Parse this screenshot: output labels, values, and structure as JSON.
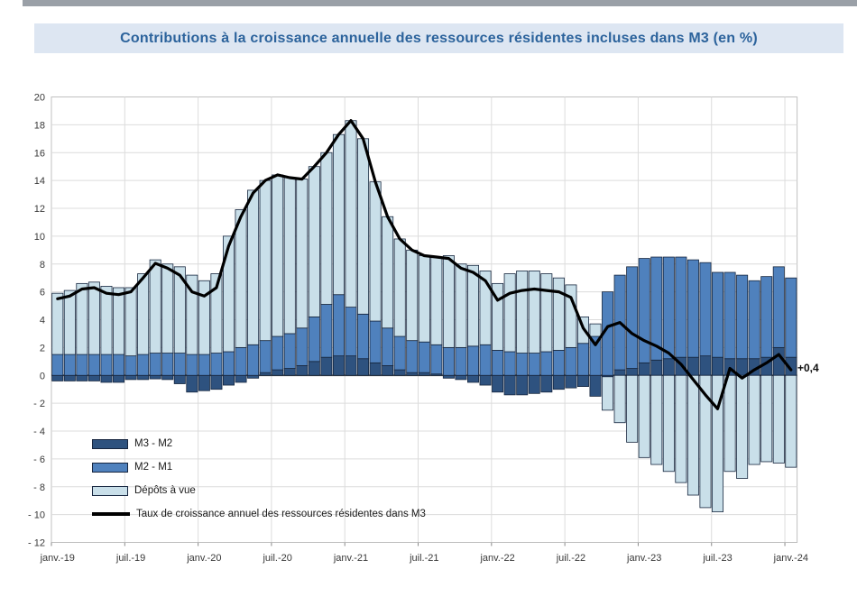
{
  "title": {
    "text": "Contributions à la croissance annuelle des ressources résidentes incluses dans M3 (en %)"
  },
  "annotation_label": "+0,4",
  "chart_data": {
    "type": "bar",
    "variant": "stacked-bars-with-total-line",
    "unit": "%",
    "grid": true,
    "legend_position": "bottom-left-inside",
    "ylim": [
      -12,
      20
    ],
    "ytick_step": 2,
    "ytick_labels": [
      "20",
      "18",
      "16",
      "14",
      "12",
      "10",
      "8",
      "6",
      "4",
      "2",
      "0",
      "- 2",
      "- 4",
      "- 6",
      "- 8",
      "- 10",
      "- 12"
    ],
    "x": [
      "2019-01",
      "2019-02",
      "2019-03",
      "2019-04",
      "2019-05",
      "2019-06",
      "2019-07",
      "2019-08",
      "2019-09",
      "2019-10",
      "2019-11",
      "2019-12",
      "2020-01",
      "2020-02",
      "2020-03",
      "2020-04",
      "2020-05",
      "2020-06",
      "2020-07",
      "2020-08",
      "2020-09",
      "2020-10",
      "2020-11",
      "2020-12",
      "2021-01",
      "2021-02",
      "2021-03",
      "2021-04",
      "2021-05",
      "2021-06",
      "2021-07",
      "2021-08",
      "2021-09",
      "2021-10",
      "2021-11",
      "2021-12",
      "2022-01",
      "2022-02",
      "2022-03",
      "2022-04",
      "2022-05",
      "2022-06",
      "2022-07",
      "2022-08",
      "2022-09",
      "2022-10",
      "2022-11",
      "2022-12",
      "2023-01",
      "2023-02",
      "2023-03",
      "2023-04",
      "2023-05",
      "2023-06",
      "2023-07",
      "2023-08",
      "2023-09",
      "2023-10",
      "2023-11",
      "2023-12",
      "2024-01"
    ],
    "x_tick_labels": [
      "janv.-19",
      "juil.-19",
      "janv.-20",
      "juil.-20",
      "janv.-21",
      "juil.-21",
      "janv.-22",
      "juil.-22",
      "janv.-23",
      "juil.-23",
      "janv.-24"
    ],
    "x_tick_positions": [
      0,
      6,
      12,
      18,
      24,
      30,
      36,
      42,
      48,
      54,
      60
    ],
    "series": [
      {
        "name": "M3 - M2",
        "role": "bar",
        "color": "#2e527f",
        "values": [
          -0.4,
          -0.4,
          -0.4,
          -0.4,
          -0.5,
          -0.5,
          -0.3,
          -0.3,
          -0.25,
          -0.3,
          -0.6,
          -1.2,
          -1.1,
          -1.0,
          -0.7,
          -0.5,
          -0.2,
          0.2,
          0.4,
          0.5,
          0.7,
          1.0,
          1.3,
          1.4,
          1.4,
          1.2,
          0.9,
          0.7,
          0.4,
          0.2,
          0.2,
          0.1,
          -0.2,
          -0.3,
          -0.5,
          -0.7,
          -1.2,
          -1.4,
          -1.4,
          -1.3,
          -1.2,
          -1.0,
          -0.9,
          -0.8,
          -1.5,
          -0.1,
          0.4,
          0.5,
          0.9,
          1.1,
          1.2,
          1.3,
          1.3,
          1.4,
          1.3,
          1.2,
          1.2,
          1.2,
          1.3,
          2.0,
          1.3
        ]
      },
      {
        "name": "M2 - M1",
        "role": "bar",
        "color": "#4f81bd",
        "values": [
          1.5,
          1.5,
          1.5,
          1.5,
          1.5,
          1.5,
          1.4,
          1.5,
          1.6,
          1.6,
          1.6,
          1.5,
          1.5,
          1.6,
          1.7,
          2.0,
          2.2,
          2.3,
          2.4,
          2.5,
          2.7,
          3.2,
          3.8,
          4.4,
          3.5,
          3.2,
          3.0,
          2.7,
          2.4,
          2.3,
          2.2,
          2.1,
          2.0,
          2.0,
          2.1,
          2.2,
          1.8,
          1.7,
          1.6,
          1.6,
          1.7,
          1.8,
          2.0,
          2.3,
          2.8,
          6.0,
          6.8,
          7.3,
          7.5,
          7.4,
          7.3,
          7.2,
          7.0,
          6.7,
          6.1,
          6.2,
          6.0,
          5.6,
          5.8,
          5.8,
          5.7
        ]
      },
      {
        "name": "Dépôts à vue",
        "role": "bar",
        "color": "#c9dfe9",
        "values": [
          4.4,
          4.6,
          5.1,
          5.2,
          4.9,
          4.8,
          4.9,
          5.8,
          6.7,
          6.4,
          6.2,
          5.7,
          5.3,
          5.7,
          8.3,
          9.9,
          11.1,
          11.5,
          11.6,
          11.2,
          10.7,
          10.8,
          10.9,
          11.5,
          13.4,
          12.6,
          10.0,
          8.0,
          7.0,
          6.5,
          6.2,
          6.3,
          6.6,
          6.0,
          5.8,
          5.3,
          4.8,
          5.6,
          5.9,
          5.9,
          5.6,
          5.2,
          4.5,
          1.9,
          0.9,
          -2.4,
          -3.4,
          -4.8,
          -5.9,
          -6.4,
          -6.9,
          -7.7,
          -8.6,
          -9.5,
          -9.8,
          -6.9,
          -7.4,
          -6.4,
          -6.2,
          -6.3,
          -6.6
        ]
      },
      {
        "name": "Taux de croissance annuel des ressources résidentes dans M3",
        "role": "line",
        "color": "#000000",
        "values": [
          5.5,
          5.7,
          6.2,
          6.3,
          5.9,
          5.8,
          6.0,
          7.0,
          8.05,
          7.7,
          7.2,
          6.0,
          5.7,
          6.3,
          9.3,
          11.4,
          13.1,
          14.0,
          14.4,
          14.2,
          14.1,
          15.0,
          16.0,
          17.3,
          18.3,
          17.0,
          13.9,
          11.4,
          9.8,
          9.0,
          8.6,
          8.5,
          8.4,
          7.7,
          7.4,
          6.8,
          5.4,
          5.9,
          6.1,
          6.2,
          6.1,
          6.0,
          5.6,
          3.4,
          2.2,
          3.5,
          3.8,
          3.0,
          2.5,
          2.1,
          1.6,
          0.8,
          -0.3,
          -1.4,
          -2.4,
          0.5,
          -0.2,
          0.4,
          0.9,
          1.5,
          0.4
        ]
      }
    ],
    "annotation": {
      "text": "+0,4",
      "value": 0.4,
      "x_index": 60
    }
  },
  "colors": {
    "banner_bg": "#dde6f2",
    "title_text": "#2c639c",
    "grid": "#dcdcdc",
    "plot_border": "#c0c0c0",
    "zero_line": "#454545",
    "bar_stroke": "#17273f",
    "axis_text": "#383838",
    "top_strip": "#9aa0a7"
  }
}
